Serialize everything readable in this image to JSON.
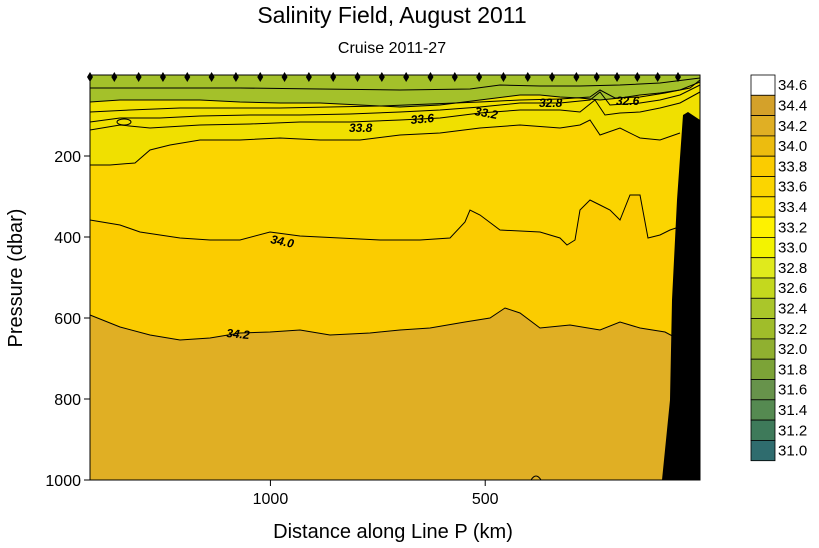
{
  "chart_data": {
    "type": "contour",
    "title": "Salinity Field,  August 2011",
    "subtitle": "Cruise 2011-27",
    "xlabel": "Distance along Line P  (km)",
    "ylabel": "Pressure  (dbar)",
    "xlim": [
      1420,
      0
    ],
    "ylim": [
      1000,
      0
    ],
    "x_ticks": [
      {
        "value": 1000,
        "label": "1000"
      },
      {
        "value": 500,
        "label": "500"
      }
    ],
    "y_ticks": [
      {
        "value": 200,
        "label": "200"
      },
      {
        "value": 400,
        "label": "400"
      },
      {
        "value": 600,
        "label": "600"
      },
      {
        "value": 800,
        "label": "800"
      },
      {
        "value": 1000,
        "label": "1000"
      }
    ],
    "colorbar": {
      "levels": [
        "34.6",
        "34.4",
        "34.2",
        "34.0",
        "33.8",
        "33.6",
        "33.4",
        "33.2",
        "33.0",
        "32.8",
        "32.6",
        "32.4",
        "32.2",
        "32.0",
        "31.8",
        "31.6",
        "31.4",
        "31.2",
        "31.0"
      ],
      "colors": [
        "#ffffff",
        "#d4a12a",
        "#e0af24",
        "#ecbc0f",
        "#fbcc00",
        "#fbd500",
        "#fce000",
        "#fef200",
        "#f3f300",
        "#e0ea1c",
        "#c4d81e",
        "#aac62a",
        "#a0bd2a",
        "#90b030",
        "#7ca337",
        "#67934b",
        "#558a51",
        "#3e7a5a",
        "#2f6c6e"
      ]
    },
    "contour_labels": [
      {
        "text": "32.8",
        "x": 370,
        "y": 70
      },
      {
        "text": "32.6",
        "x": 160,
        "y": 60
      },
      {
        "text": "33.2",
        "x": 500,
        "y": 85
      },
      {
        "text": "33.6",
        "x": 620,
        "y": 95
      },
      {
        "text": "33.8",
        "x": 820,
        "y": 115
      },
      {
        "text": "34.0",
        "x": 1000,
        "y": 420
      },
      {
        "text": "34.2",
        "x": 1070,
        "y": 640
      }
    ],
    "station_markers_count": 26,
    "colors": {
      "surface_band": "#a4c12a",
      "mid_upper": "#fbd500",
      "mid": "#fbcc00",
      "deep": "#e0af24",
      "bathymetry": "#000000"
    }
  }
}
